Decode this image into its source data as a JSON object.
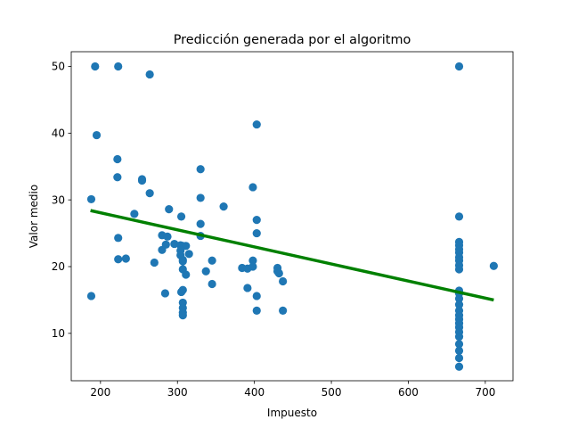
{
  "chart_data": {
    "type": "scatter",
    "title": "Predicción generada por el algoritmo",
    "xlabel": "Impuesto",
    "ylabel": "Valor medio",
    "xlim": [
      162,
      736
    ],
    "ylim": [
      2.9,
      52.2
    ],
    "xticks": [
      200,
      300,
      400,
      500,
      600,
      700
    ],
    "yticks": [
      10,
      20,
      30,
      40,
      50
    ],
    "grid": false,
    "colors": {
      "points": "#1f77b4",
      "line": "#008000"
    },
    "series": [
      {
        "kind": "scatter",
        "points": [
          [
            193,
            50
          ],
          [
            223,
            50
          ],
          [
            264,
            48.8
          ],
          [
            666,
            50
          ],
          [
            195,
            39.7
          ],
          [
            403,
            41.3
          ],
          [
            222,
            36.1
          ],
          [
            222,
            33.4
          ],
          [
            254,
            33.1
          ],
          [
            254,
            32.9
          ],
          [
            398,
            31.9
          ],
          [
            188,
            30.1
          ],
          [
            264,
            31
          ],
          [
            330,
            30.3
          ],
          [
            330,
            34.6
          ],
          [
            244,
            27.9
          ],
          [
            289,
            28.6
          ],
          [
            305,
            27.5
          ],
          [
            330,
            26.4
          ],
          [
            360,
            29
          ],
          [
            403,
            27
          ],
          [
            666,
            27.5
          ],
          [
            223,
            24.3
          ],
          [
            280,
            24.7
          ],
          [
            287,
            24.5
          ],
          [
            296,
            23.4
          ],
          [
            304,
            23.2
          ],
          [
            307,
            23.1
          ],
          [
            311,
            23.1
          ],
          [
            280,
            22.5
          ],
          [
            285,
            23.3
          ],
          [
            304,
            22.4
          ],
          [
            304,
            21.7
          ],
          [
            315,
            21.9
          ],
          [
            330,
            24.6
          ],
          [
            403,
            25
          ],
          [
            223,
            21.1
          ],
          [
            233,
            21.2
          ],
          [
            270,
            20.6
          ],
          [
            307,
            21
          ],
          [
            307,
            20.8
          ],
          [
            345,
            20.9
          ],
          [
            384,
            19.8
          ],
          [
            391,
            19.7
          ],
          [
            398,
            20.9
          ],
          [
            398,
            20
          ],
          [
            430,
            19.8
          ],
          [
            430,
            19.3
          ],
          [
            432,
            19
          ],
          [
            666,
            23.7
          ],
          [
            666,
            23.2
          ],
          [
            666,
            22.6
          ],
          [
            666,
            22.1
          ],
          [
            666,
            21.4
          ],
          [
            666,
            20.9
          ],
          [
            666,
            20.2
          ],
          [
            666,
            19.6
          ],
          [
            711,
            20.1
          ],
          [
            188,
            15.6
          ],
          [
            284,
            16
          ],
          [
            305,
            16.2
          ],
          [
            307,
            19.6
          ],
          [
            311,
            18.8
          ],
          [
            307,
            16.5
          ],
          [
            337,
            19.3
          ],
          [
            345,
            17.4
          ],
          [
            391,
            16.8
          ],
          [
            403,
            15.6
          ],
          [
            437,
            17.8
          ],
          [
            307,
            14.6
          ],
          [
            307,
            13.8
          ],
          [
            307,
            13.1
          ],
          [
            307,
            12.7
          ],
          [
            403,
            13.4
          ],
          [
            437,
            13.4
          ],
          [
            666,
            16.4
          ],
          [
            666,
            16
          ],
          [
            666,
            15.2
          ],
          [
            666,
            14.3
          ],
          [
            666,
            13.4
          ],
          [
            666,
            12.7
          ],
          [
            666,
            12.1
          ],
          [
            666,
            11.5
          ],
          [
            666,
            10.9
          ],
          [
            666,
            10.2
          ],
          [
            666,
            9.5
          ],
          [
            666,
            8.4
          ],
          [
            666,
            7.4
          ],
          [
            666,
            6.3
          ],
          [
            666,
            5
          ]
        ]
      },
      {
        "kind": "line",
        "x": [
          187,
          711
        ],
        "y": [
          28.4,
          15.0
        ]
      }
    ]
  }
}
